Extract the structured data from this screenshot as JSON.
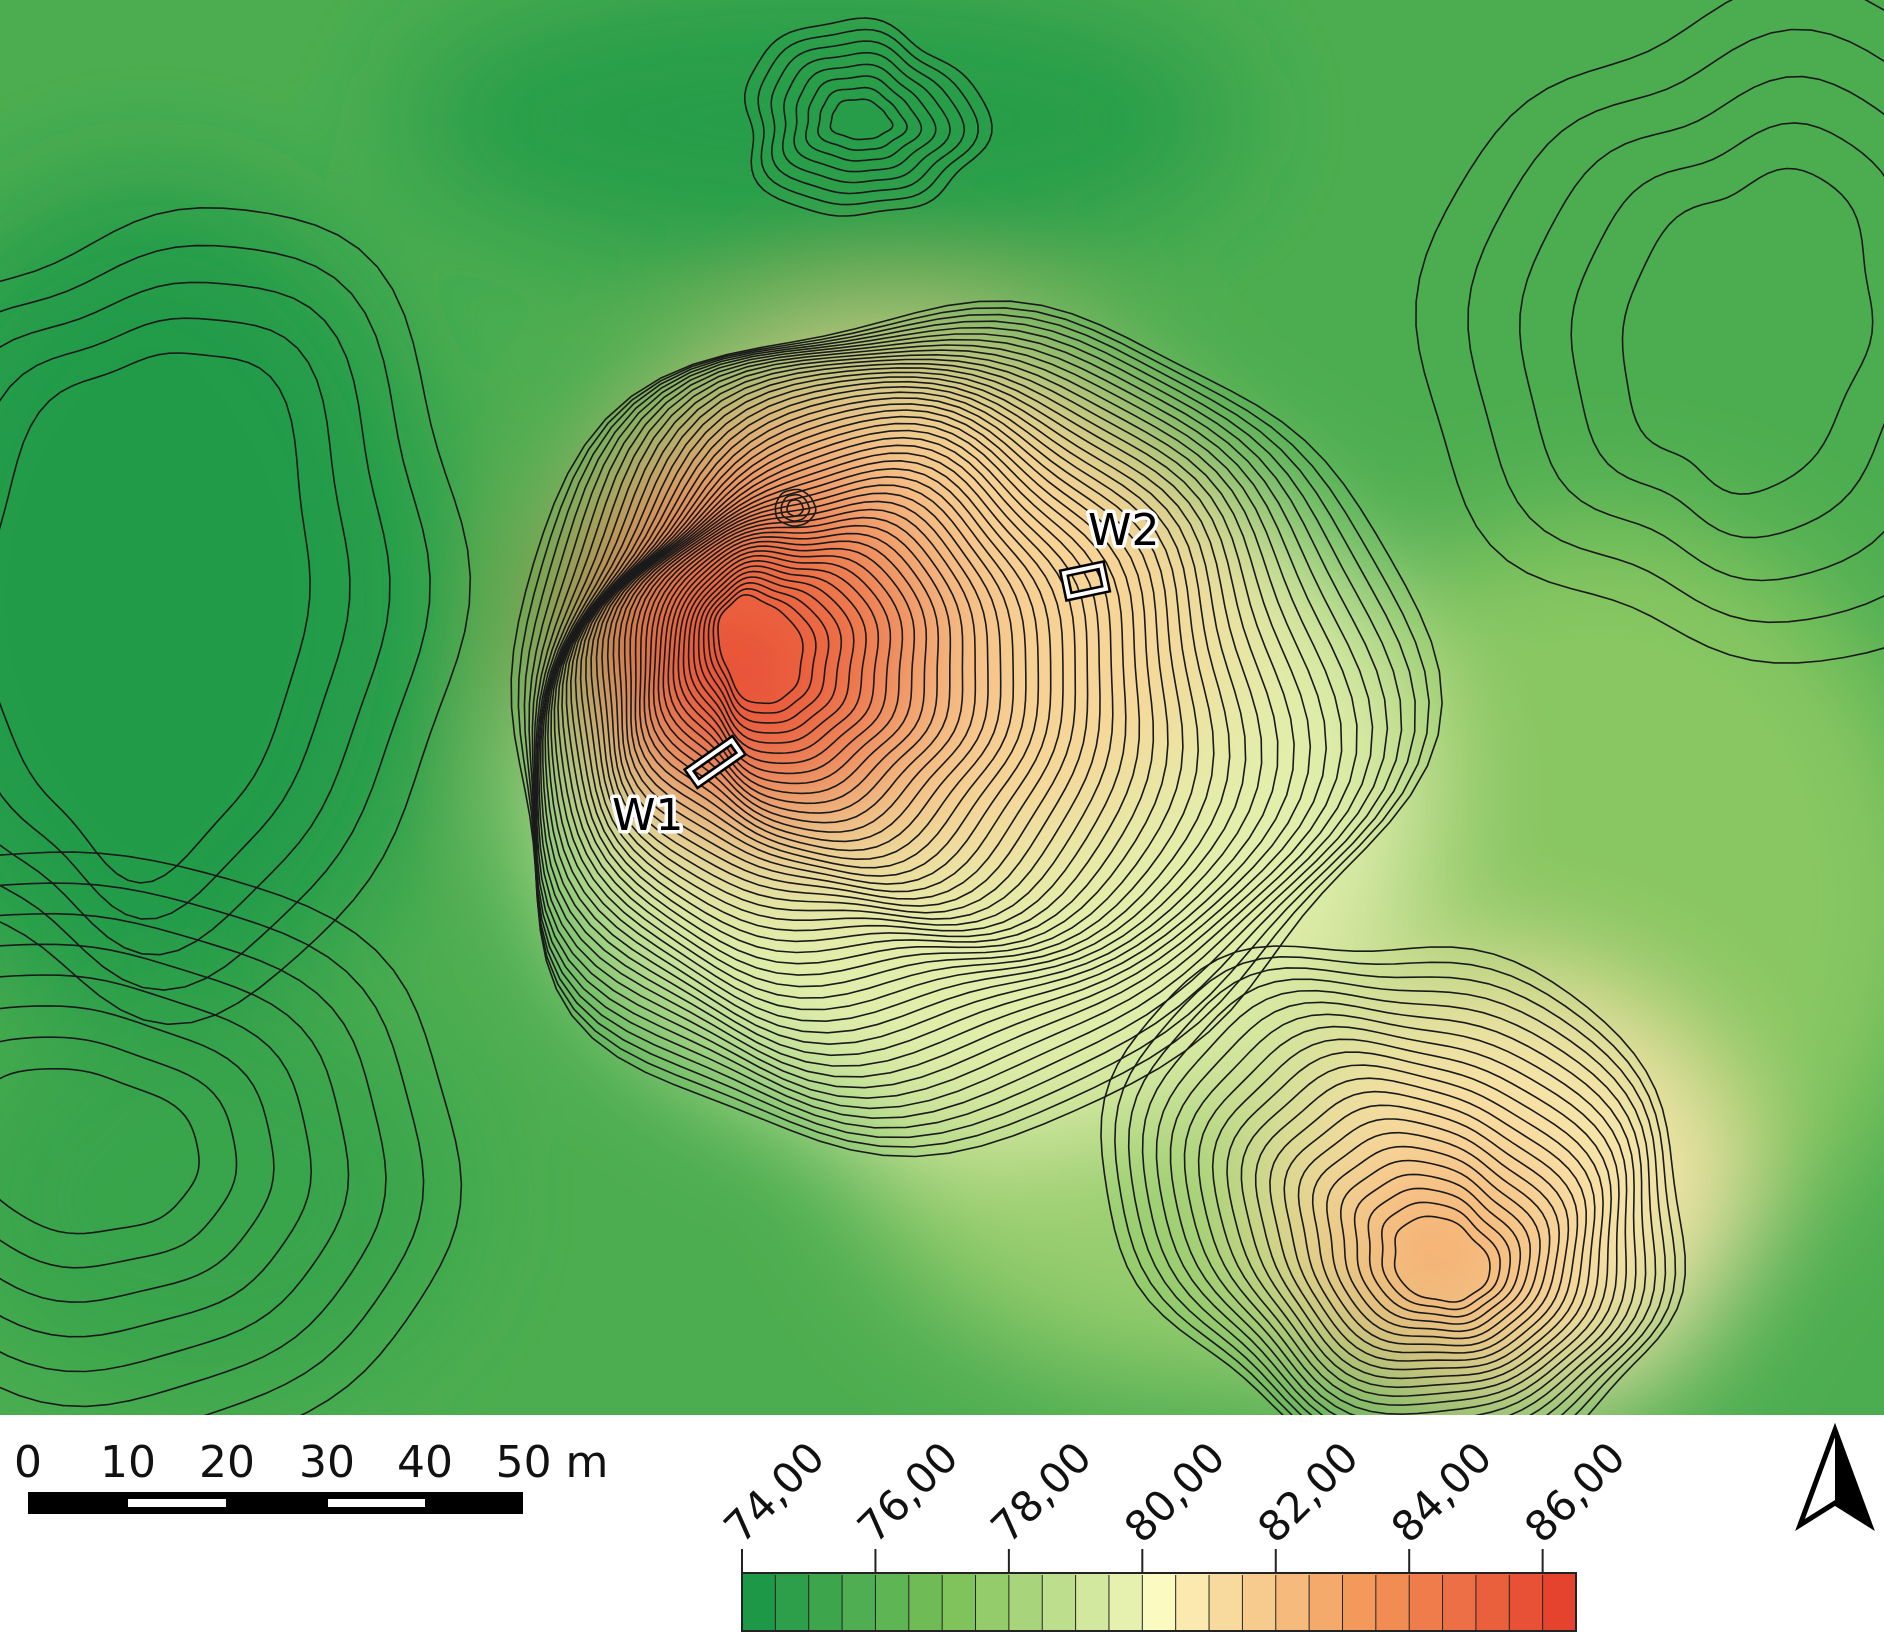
{
  "map": {
    "colors": {
      "low": "#1c9847",
      "mid_low": "#7fc35a",
      "mid": "#fbfac0",
      "mid_high": "#f39a5a",
      "high": "#e6432f",
      "contour": "#1a1a1a",
      "background": "#ffffff"
    },
    "markers": [
      {
        "id": "w1",
        "label": "W1"
      },
      {
        "id": "w2",
        "label": "W2"
      }
    ]
  },
  "scale_bar": {
    "labels": [
      "0",
      "10",
      "20",
      "30",
      "40",
      "50 m"
    ]
  },
  "elevation_legend": {
    "min": 74,
    "max": 86,
    "minor_step": 0.5,
    "labels": [
      "74,00",
      "76,00",
      "78,00",
      "80,00",
      "82,00",
      "84,00",
      "86,00"
    ]
  },
  "north_arrow": {
    "icon": "north-arrow-icon"
  }
}
